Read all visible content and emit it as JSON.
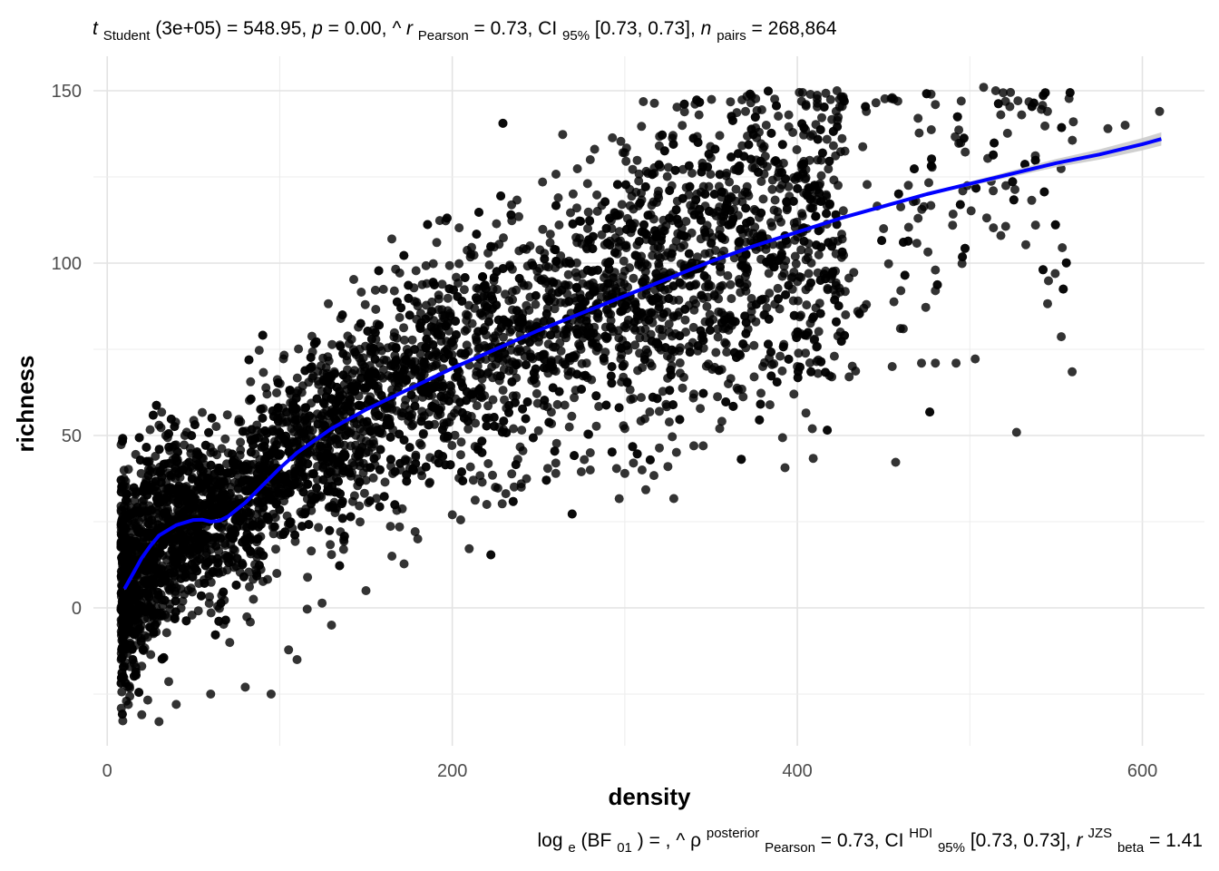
{
  "chart_data": {
    "type": "scatter",
    "title": {
      "t_symbol": "t",
      "t_sub": "Student",
      "t_value": "(3e+05) = 548.95,",
      "p_symbol": "p",
      "p_value": "= 0.00,",
      "r_symbol": "r",
      "r_hat": "^",
      "r_sub": "Pearson",
      "r_value": "= 0.73,",
      "ci_label": "CI",
      "ci_sub": "95%",
      "ci_value": "[0.73, 0.73],",
      "n_symbol": "n",
      "n_sub": "pairs",
      "n_value": "= 268,864"
    },
    "caption": {
      "log_label": "log",
      "log_sub": "e",
      "bf_open": "(BF",
      "bf_sub": "01",
      "bf_close": ") = ,",
      "rho_symbol": "ρ",
      "rho_hat": "^",
      "rho_sup": "posterior",
      "rho_sub": "Pearson",
      "rho_value": "= 0.73,",
      "ci_label": "CI",
      "ci_sup": "HDI",
      "ci_sub": "95%",
      "ci_value": "[0.73, 0.73],",
      "r_symbol": "r",
      "r_sup": "JZS",
      "r_sub": "beta",
      "r_value": "= 1.41"
    },
    "xlabel": "density",
    "ylabel": "richness",
    "xlim": [
      -8,
      636
    ],
    "ylim": [
      -40,
      160
    ],
    "x_ticks": [
      0,
      200,
      400,
      600
    ],
    "x_tick_labels": [
      "0",
      "200",
      "400",
      "600"
    ],
    "y_ticks": [
      0,
      50,
      100,
      150
    ],
    "y_tick_labels": [
      "0",
      "50",
      "100",
      "150"
    ],
    "grid": true,
    "points_color": "#000000",
    "points_opacity": 0.8,
    "fit_line": {
      "color": "#0000ff",
      "band_color": "#c8c8c8",
      "x": [
        10,
        15,
        20,
        25,
        30,
        40,
        50,
        55,
        60,
        65,
        70,
        80,
        90,
        100,
        110,
        120,
        130,
        150,
        175,
        200,
        225,
        250,
        275,
        300,
        325,
        350,
        375,
        400,
        425,
        450,
        475,
        500,
        525,
        550,
        575,
        600,
        611
      ],
      "y": [
        5.5,
        10,
        14.5,
        18,
        21,
        24,
        25.5,
        25.6,
        25,
        25.3,
        26.5,
        30.5,
        35.5,
        40.5,
        45,
        48.5,
        52,
        57.5,
        63.5,
        69.5,
        75,
        80.5,
        85.5,
        90.5,
        95.5,
        100.5,
        105,
        109,
        113,
        116.5,
        120,
        123,
        126,
        129,
        131.5,
        134.5,
        136
      ]
    },
    "scatter_outliers": [
      [
        610,
        144
      ],
      [
        590,
        140
      ],
      [
        580,
        139
      ],
      [
        560,
        141
      ],
      [
        545,
        144
      ],
      [
        530,
        143
      ],
      [
        515,
        150
      ],
      [
        508,
        151
      ],
      [
        495,
        147
      ],
      [
        480,
        146
      ],
      [
        470,
        142
      ],
      [
        455,
        148
      ],
      [
        440,
        144
      ],
      [
        423,
        150
      ],
      [
        405,
        146
      ],
      [
        395,
        143
      ],
      [
        382,
        140
      ],
      [
        370,
        144
      ],
      [
        355,
        137
      ],
      [
        343,
        143
      ],
      [
        320,
        134
      ],
      [
        300,
        132
      ],
      [
        280,
        130
      ],
      [
        518,
        108
      ],
      [
        490,
        111
      ],
      [
        470,
        113
      ],
      [
        450,
        110
      ],
      [
        480,
        98
      ],
      [
        480,
        92
      ],
      [
        460,
        92
      ],
      [
        440,
        88
      ],
      [
        435,
        86
      ],
      [
        425,
        80
      ],
      [
        410,
        78
      ],
      [
        400,
        70
      ],
      [
        412,
        68
      ],
      [
        420,
        67
      ],
      [
        430,
        67
      ],
      [
        455,
        70
      ],
      [
        472,
        71
      ],
      [
        480,
        71
      ],
      [
        492,
        71
      ],
      [
        398,
        62
      ],
      [
        375,
        67
      ],
      [
        355,
        52
      ],
      [
        340,
        47
      ],
      [
        325,
        41
      ],
      [
        305,
        42
      ],
      [
        310,
        40
      ],
      [
        300,
        39
      ],
      [
        280,
        40
      ],
      [
        260,
        39
      ],
      [
        240,
        36
      ],
      [
        225,
        35
      ],
      [
        190,
        43
      ],
      [
        170,
        40
      ],
      [
        150,
        37
      ],
      [
        130,
        37
      ],
      [
        115,
        38
      ],
      [
        100,
        39
      ],
      [
        80,
        40
      ],
      [
        60,
        45
      ],
      [
        45,
        50
      ],
      [
        30,
        53
      ],
      [
        20,
        -31
      ],
      [
        30,
        -33
      ],
      [
        40,
        -28
      ],
      [
        60,
        -25
      ],
      [
        80,
        -23
      ],
      [
        95,
        -25
      ],
      [
        110,
        -15
      ],
      [
        130,
        -5
      ],
      [
        150,
        5
      ],
      [
        165,
        15
      ],
      [
        180,
        20
      ],
      [
        200,
        27
      ],
      [
        220,
        30
      ],
      [
        240,
        35
      ],
      [
        260,
        42
      ],
      [
        280,
        45
      ],
      [
        300,
        52
      ],
      [
        320,
        57
      ],
      [
        340,
        62
      ],
      [
        360,
        65
      ],
      [
        380,
        70
      ],
      [
        390,
        73
      ]
    ]
  }
}
